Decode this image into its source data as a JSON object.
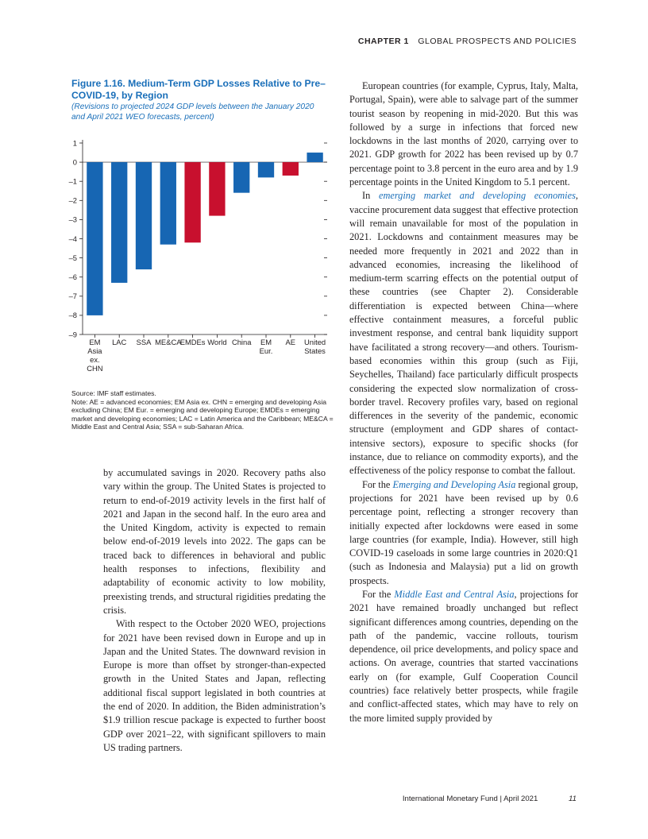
{
  "header": {
    "chapter": "CHAPTER 1",
    "section": "GLOBAL PROSPECTS AND POLICIES"
  },
  "figure": {
    "title": "Figure 1.16. Medium-Term GDP Losses Relative to Pre–COVID-19, by Region",
    "subtitle": "(Revisions to projected 2024 GDP levels between the January 2020 and April 2021 WEO forecasts, percent)",
    "source": "Source: IMF staff estimates.",
    "note": "Note: AE = advanced economies; EM Asia ex. CHN = emerging and developing Asia excluding China; EM Eur. = emerging and developing Europe; EMDEs = emerging market and developing economies; LAC = Latin America and the Caribbean; ME&CA = Middle East and Central Asia; SSA = sub-Saharan Africa."
  },
  "chart_data": {
    "type": "bar",
    "categories": [
      "EM Asia ex. CHN",
      "LAC",
      "SSA",
      "ME&CA",
      "EMDEs",
      "World",
      "China",
      "EM Eur.",
      "AE",
      "United States"
    ],
    "category_label_lines": [
      [
        "EM",
        "Asia",
        "ex.",
        "CHN"
      ],
      [
        "LAC"
      ],
      [
        "SSA"
      ],
      [
        "ME&CA"
      ],
      [
        "EMDEs"
      ],
      [
        "World"
      ],
      [
        "China"
      ],
      [
        "EM",
        "Eur."
      ],
      [
        "AE"
      ],
      [
        "United",
        "States"
      ]
    ],
    "values": [
      -8.0,
      -6.3,
      -5.6,
      -4.3,
      -4.2,
      -2.8,
      -1.6,
      -0.8,
      -0.7,
      0.5
    ],
    "colors": [
      "#1766b3",
      "#1766b3",
      "#1766b3",
      "#1766b3",
      "#c8102e",
      "#c8102e",
      "#1766b3",
      "#1766b3",
      "#c8102e",
      "#1766b3"
    ],
    "ylim": [
      -9,
      1
    ],
    "yticks": [
      1,
      0,
      -1,
      -2,
      -3,
      -4,
      -5,
      -6,
      -7,
      -8,
      -9
    ],
    "ytick_labels": [
      "1",
      "0",
      "–1",
      "–2",
      "–3",
      "–4",
      "–5",
      "–6",
      "–7",
      "–8",
      "–9"
    ],
    "title": "",
    "xlabel": "",
    "ylabel": ""
  },
  "left_column": [
    "by accumulated savings in 2020. Recovery paths also vary within the group. The United States is projected to return to end-of-2019 activity levels in the first half of 2021 and Japan in the second half. In the euro area and the United Kingdom, activity is expected to remain below end-of-2019 levels into 2022. The gaps can be traced back to differences in behavioral and public health responses to infections, flexibility and adaptability of economic activity to low mobility, preexisting trends, and structural rigidities predating the crisis.",
    "With respect to the October 2020 WEO, projections for 2021 have been revised down in Europe and up in Japan and the United States. The downward revision in Europe is more than offset by stronger-than-expected growth in the United States and Japan, reflecting additional fiscal support legislated in both countries at the end of 2020. In addition, the Biden administration’s $1.9 trillion rescue package is expected to further boost GDP over 2021–22, with significant spillovers to main US trading partners."
  ],
  "right_column": {
    "p1": "European countries (for example, Cyprus, Italy, Malta, Portugal, Spain), were able to salvage part of the summer tourist season by reopening in mid-2020. But this was followed by a surge in infections that forced new lockdowns in the last months of 2020, carrying over to 2021. GDP growth for 2022 has been revised up by 0.7 percentage point to 3.8 percent in the euro area and by 1.9 percentage points in the United Kingdom to 5.1 percent.",
    "p2_pre": "In ",
    "p2_link": "emerging market and developing economies",
    "p2_post": ", vaccine procurement data suggest that effective protection will remain unavailable for most of the population in 2021. Lockdowns and containment measures may be needed more frequently in 2021 and 2022 than in advanced economies, increasing the likelihood of medium-term scarring effects on the potential output of these countries (see Chapter 2). Considerable differentiation is expected between China—where effective containment measures, a forceful public investment response, and central bank liquidity support have facilitated a strong recovery—and others. Tourism-based economies within this group (such as Fiji, Seychelles, Thailand) face particularly difficult prospects considering the expected slow normalization of cross-border travel. Recovery profiles vary, based on regional differences in the severity of the pandemic, economic structure (employment and GDP shares of contact-intensive sectors), exposure to specific shocks (for instance, due to reliance on commodity exports), and the effectiveness of the policy response to combat the fallout.",
    "p3_pre": "For the ",
    "p3_link": "Emerging and Developing Asia",
    "p3_post": " regional group, projections for 2021 have been revised up by 0.6 percentage point, reflecting a stronger recovery than initially expected after lockdowns were eased in some large countries (for example, India). However, still high COVID-19 caseloads in some large countries in 2020:Q1 (such as Indonesia and Malaysia) put a lid on growth prospects.",
    "p4_pre": "For the ",
    "p4_link": "Middle East and Central Asia",
    "p4_post": ", projections for 2021 have remained broadly unchanged but reflect significant differences among countries, depending on the path of the pandemic, vaccine rollouts, tourism dependence, oil price developments, and policy space and actions. On average, countries that started vaccinations early on (for example, Gulf Cooperation Council countries) face relatively better prospects, while fragile and conflict-affected states, which may have to rely on the more limited supply provided by"
  },
  "footer": {
    "publication": "International Monetary Fund | April 2021",
    "page": "11"
  }
}
